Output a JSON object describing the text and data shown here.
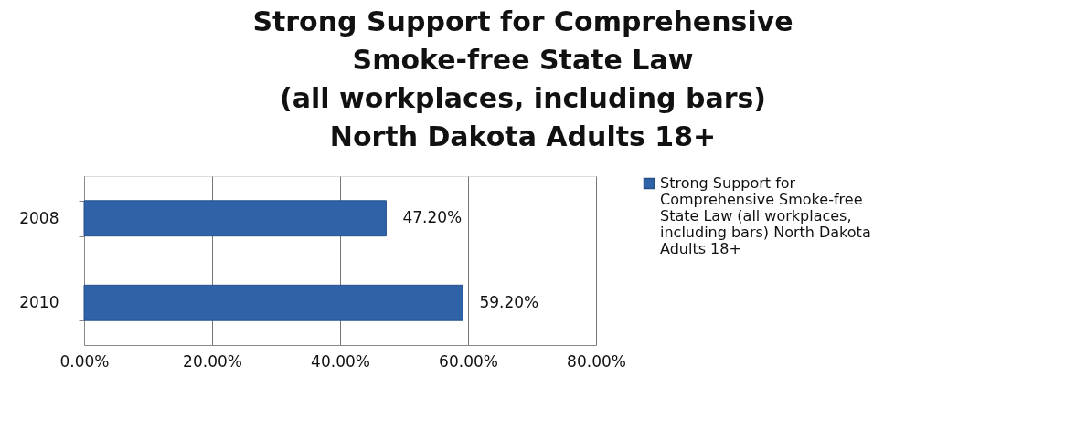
{
  "chart_data": {
    "type": "bar",
    "orientation": "horizontal",
    "title": "Strong Support for Comprehensive\nSmoke-free State Law\n(all workplaces, including bars)\nNorth Dakota Adults 18+",
    "categories": [
      "2008",
      "2010"
    ],
    "series": [
      {
        "name": "Strong Support for Comprehensive Smoke-free State Law (all workplaces, including bars) North Dakota Adults 18+",
        "color": "#2f62a6",
        "values": [
          47.2,
          59.2
        ],
        "value_labels": [
          "47.20%",
          "59.20%"
        ]
      }
    ],
    "xlim": [
      0,
      80
    ],
    "xticks": [
      {
        "value": 0,
        "label": "0.00%"
      },
      {
        "value": 20,
        "label": "20.00%"
      },
      {
        "value": 40,
        "label": "40.00%"
      },
      {
        "value": 60,
        "label": "60.00%"
      },
      {
        "value": 80,
        "label": "80.00%"
      }
    ],
    "grid": "x",
    "legend": "right"
  }
}
